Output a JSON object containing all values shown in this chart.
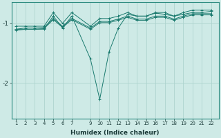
{
  "xlabel": "Humidex (Indice chaleur)",
  "bg_color": "#ceeae6",
  "grid_color": "#aed4cf",
  "line_color": "#1a7a6e",
  "ylim": [
    -2.6,
    -0.65
  ],
  "xlim": [
    0.5,
    22.8
  ],
  "yticks": [
    -2,
    -1
  ],
  "xticks": [
    1,
    2,
    3,
    4,
    5,
    6,
    7,
    9,
    10,
    11,
    12,
    13,
    14,
    15,
    16,
    17,
    18,
    19,
    20,
    21,
    22
  ],
  "series": [
    {
      "x": [
        1,
        2,
        3,
        4,
        5,
        6,
        7,
        9,
        10,
        11,
        12,
        13,
        14,
        15,
        16,
        17,
        18,
        19,
        20,
        21,
        22
      ],
      "y": [
        -1.05,
        -1.05,
        -1.05,
        -1.05,
        -0.82,
        -1.0,
        -0.82,
        -1.05,
        -0.92,
        -0.92,
        -0.88,
        -0.82,
        -0.88,
        -0.88,
        -0.82,
        -0.82,
        -0.88,
        -0.82,
        -0.78,
        -0.78,
        -0.78
      ]
    },
    {
      "x": [
        1,
        2,
        3,
        4,
        5,
        6,
        7,
        9,
        10,
        11,
        12,
        13,
        14,
        15,
        16,
        17,
        18,
        19,
        20,
        21,
        22
      ],
      "y": [
        -1.1,
        -1.08,
        -1.08,
        -1.07,
        -0.92,
        -1.05,
        -0.92,
        -1.08,
        -0.97,
        -0.97,
        -0.93,
        -0.88,
        -0.93,
        -0.93,
        -0.88,
        -0.88,
        -0.93,
        -0.88,
        -0.84,
        -0.84,
        -0.84
      ]
    },
    {
      "x": [
        1,
        2,
        3,
        4,
        5,
        6,
        7,
        9,
        10,
        11,
        12,
        13,
        14,
        15,
        16,
        17,
        18,
        19,
        20,
        21,
        22
      ],
      "y": [
        -1.12,
        -1.1,
        -1.1,
        -1.09,
        -0.94,
        -1.07,
        -0.94,
        -1.1,
        -0.99,
        -0.99,
        -0.95,
        -0.9,
        -0.95,
        -0.95,
        -0.9,
        -0.9,
        -0.95,
        -0.9,
        -0.86,
        -0.86,
        -0.86
      ]
    },
    {
      "x": [
        1,
        2,
        3,
        4,
        5,
        6,
        7,
        9,
        10,
        11,
        12,
        13,
        14,
        15,
        16,
        17,
        18,
        19,
        20,
        21,
        22
      ],
      "y": [
        -1.1,
        -1.1,
        -1.1,
        -1.1,
        -0.88,
        -1.08,
        -0.88,
        -1.6,
        -2.28,
        -1.48,
        -1.08,
        -0.85,
        -0.88,
        -0.88,
        -0.83,
        -0.85,
        -0.88,
        -0.85,
        -0.82,
        -0.82,
        -0.8
      ]
    }
  ]
}
